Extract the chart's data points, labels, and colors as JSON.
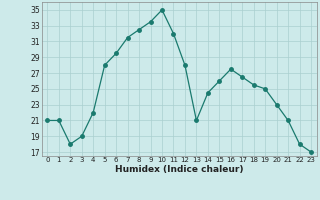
{
  "x": [
    0,
    1,
    2,
    3,
    4,
    5,
    6,
    7,
    8,
    9,
    10,
    11,
    12,
    13,
    14,
    15,
    16,
    17,
    18,
    19,
    20,
    21,
    22,
    23
  ],
  "y": [
    21,
    21,
    18,
    19,
    22,
    28,
    29.5,
    31.5,
    32.5,
    33.5,
    35,
    32,
    28,
    21,
    24.5,
    26,
    27.5,
    26.5,
    25.5,
    25,
    23,
    21,
    18,
    17
  ],
  "xlabel": "Humidex (Indice chaleur)",
  "line_color": "#1a7a6e",
  "marker_size": 2.5,
  "bg_color": "#cdeaea",
  "grid_color": "#aacfcf",
  "ylim": [
    16.5,
    36
  ],
  "yticks": [
    17,
    19,
    21,
    23,
    25,
    27,
    29,
    31,
    33,
    35
  ],
  "xlim": [
    -0.5,
    23.5
  ],
  "xticks": [
    0,
    1,
    2,
    3,
    4,
    5,
    6,
    7,
    8,
    9,
    10,
    11,
    12,
    13,
    14,
    15,
    16,
    17,
    18,
    19,
    20,
    21,
    22,
    23
  ]
}
